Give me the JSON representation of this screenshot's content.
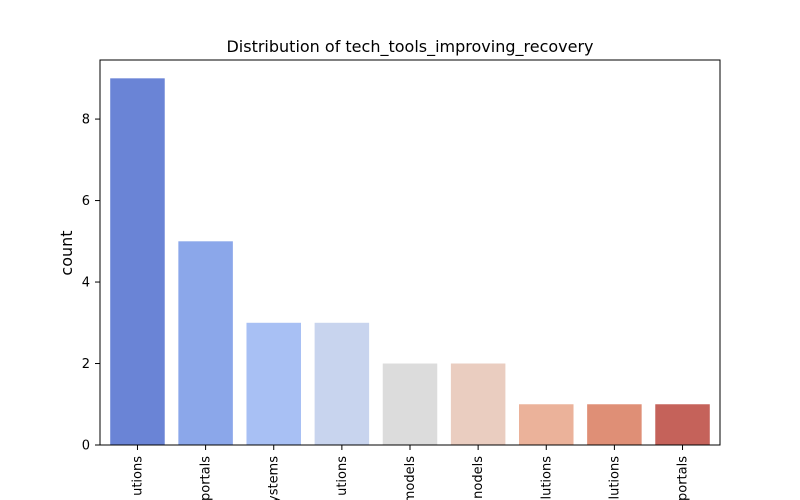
{
  "chart_data": {
    "type": "bar",
    "title": "Distribution of tech_tools_improving_recovery",
    "xlabel": "",
    "ylabel": "count",
    "categories": [
      "utions",
      "portals",
      "ystems",
      "utions",
      "models",
      "nodels",
      "lutions",
      "lutions",
      "portals"
    ],
    "values": [
      9,
      5,
      3,
      3,
      2,
      2,
      1,
      1,
      1
    ],
    "colors": [
      "#6a84d6",
      "#8ba7ea",
      "#a8c0f4",
      "#c8d4ee",
      "#dcdcdc",
      "#eacdc0",
      "#ebb29a",
      "#df8f76",
      "#c5625a"
    ],
    "ylim": [
      0,
      9.45
    ],
    "yticks": [
      0,
      2,
      4,
      6,
      8
    ],
    "grid": false,
    "legend": "none"
  }
}
